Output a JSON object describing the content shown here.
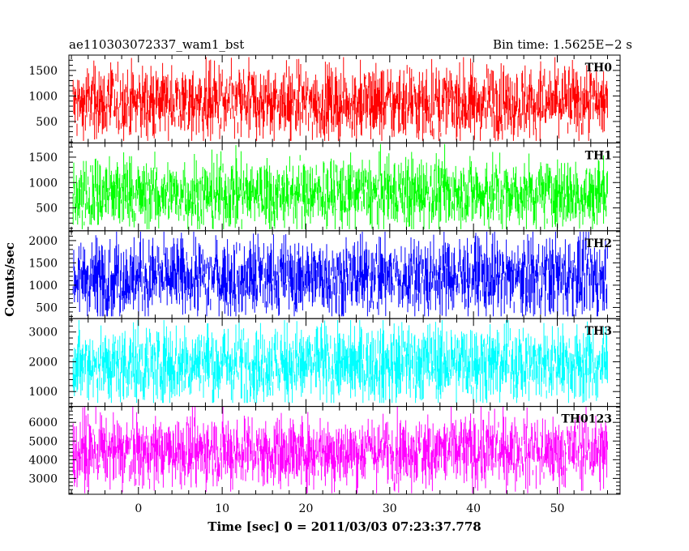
{
  "header": {
    "left": "ae110303072337_wam1_bst",
    "right": "Bin time: 1.5625E−2 s"
  },
  "chart_data": {
    "type": "line",
    "xlabel": "Time [sec] 0 = 2011/03/03 07:23:37.778",
    "ylabel": "Counts/sec",
    "xlim": [
      -8.3,
      57.5
    ],
    "x_range": [
      -7.8,
      56.0
    ],
    "bin_time_s": 0.015625,
    "x_ticks": [
      0,
      10,
      20,
      30,
      40,
      50
    ],
    "panels": [
      {
        "name": "TH0",
        "color": "#ff0000",
        "ylim": [
          80,
          1800
        ],
        "yticks": [
          500,
          1000,
          1500
        ],
        "mean": 870,
        "spread": 340,
        "floor": 120,
        "ceil": 1760
      },
      {
        "name": "TH1",
        "color": "#00ff00",
        "ylim": [
          50,
          1780
        ],
        "yticks": [
          500,
          1000,
          1500
        ],
        "mean": 780,
        "spread": 330,
        "floor": 80,
        "ceil": 1760
      },
      {
        "name": "TH2",
        "color": "#0000ff",
        "ylim": [
          250,
          2220
        ],
        "yticks": [
          500,
          1000,
          1500,
          2000
        ],
        "mean": 1180,
        "spread": 420,
        "floor": 300,
        "ceil": 2200
      },
      {
        "name": "TH3",
        "color": "#00ffff",
        "ylim": [
          500,
          3450
        ],
        "yticks": [
          1000,
          2000,
          3000
        ],
        "mean": 1950,
        "spread": 620,
        "floor": 620,
        "ceil": 3400
      },
      {
        "name": "TH0123",
        "color": "#ff00ff",
        "ylim": [
          2150,
          6850
        ],
        "yticks": [
          3000,
          4000,
          5000,
          6000
        ],
        "mean": 4450,
        "spread": 900,
        "floor": 2200,
        "ceil": 6850
      }
    ]
  }
}
